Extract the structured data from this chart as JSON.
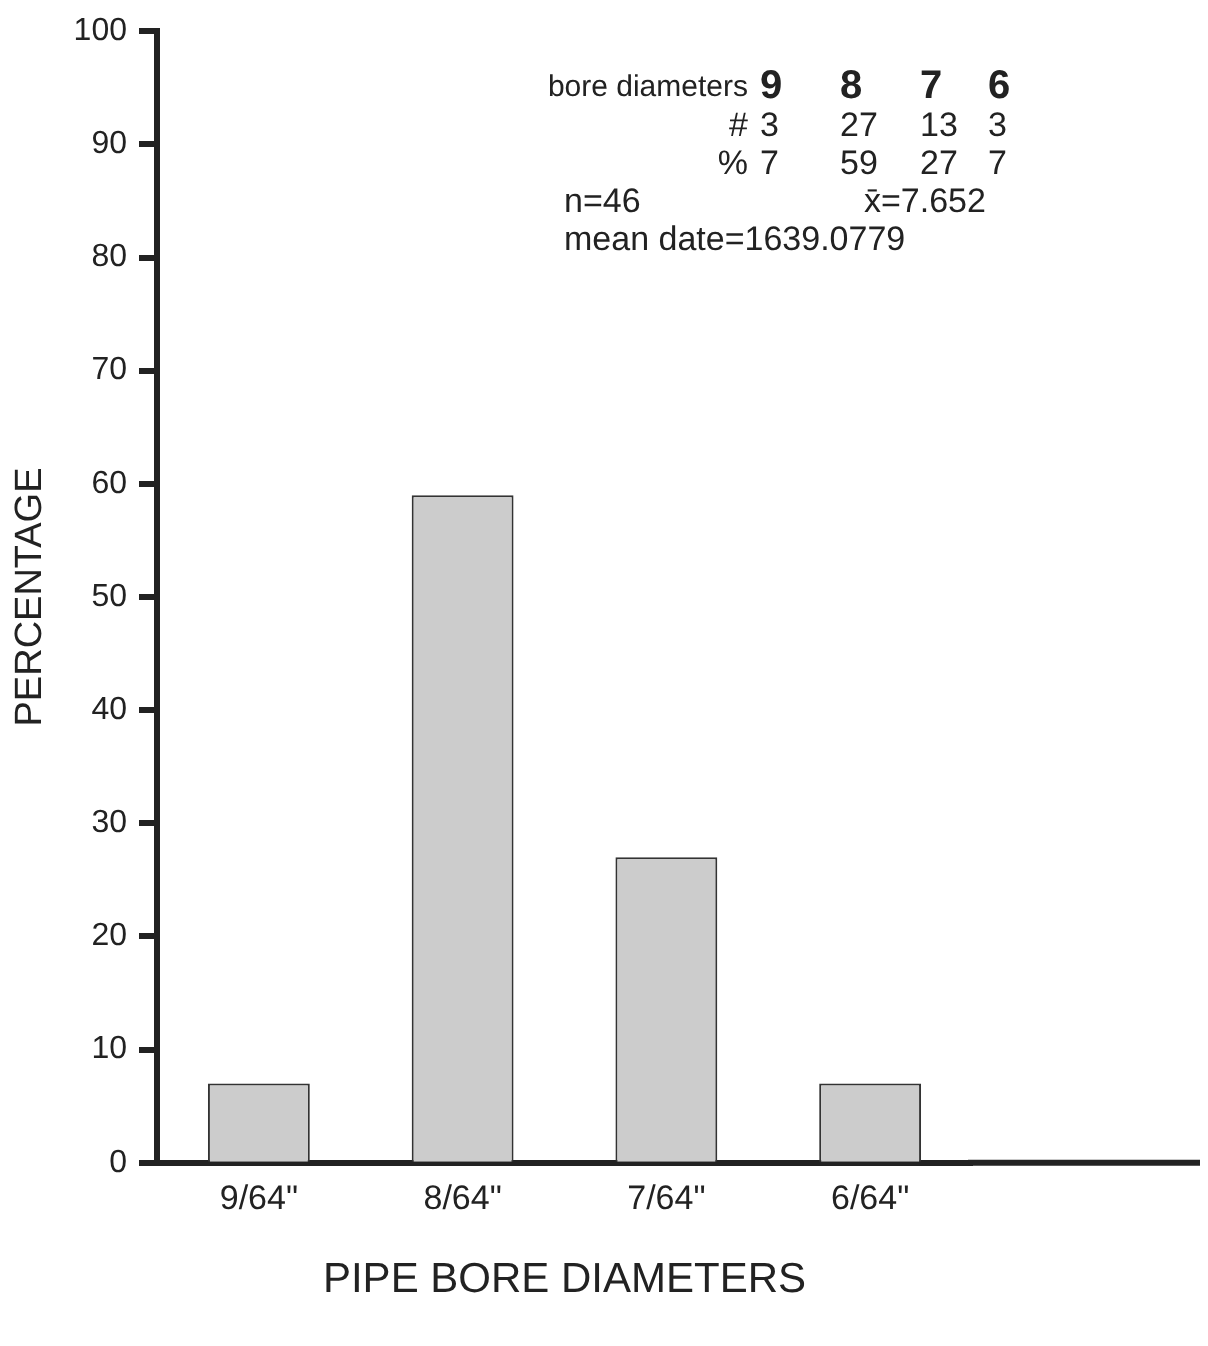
{
  "chart_data": {
    "type": "bar",
    "xlabel": "PIPE BORE DIAMETERS",
    "ylabel": "PERCENTAGE",
    "categories": [
      "9/64\"",
      "8/64\"",
      "7/64\"",
      "6/64\""
    ],
    "values": [
      7,
      59,
      27,
      7
    ],
    "color": "#cccccc",
    "ylim": [
      0,
      100
    ],
    "yticks": [
      0,
      10,
      20,
      30,
      40,
      50,
      60,
      70,
      80,
      90,
      100
    ],
    "grid": false,
    "legend": false,
    "annotations": [
      "bore diameters",
      "9",
      "8",
      "7",
      "6",
      "#",
      "3",
      "27",
      "13",
      "3",
      "%",
      "7",
      "59",
      "27",
      "7",
      "n=46",
      "x̄=7.652",
      "mean date=1639.0779"
    ]
  }
}
